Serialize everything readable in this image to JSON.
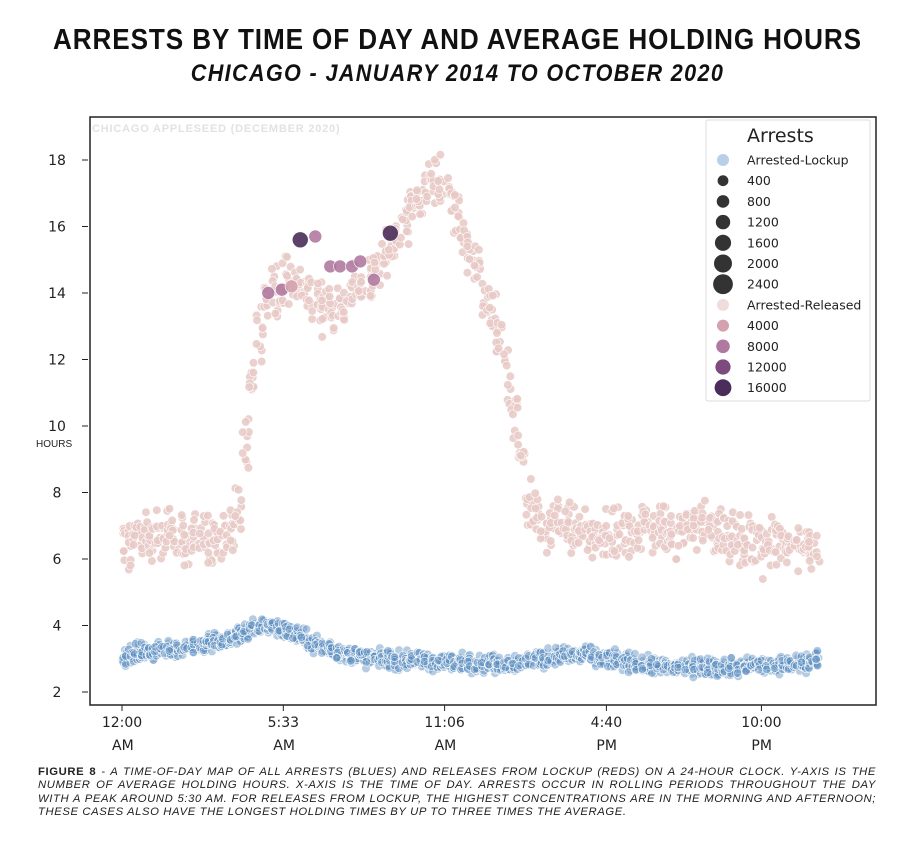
{
  "chart_data": {
    "type": "scatter",
    "title": "ARRESTS BY TIME OF DAY AND AVERAGE HOLDING HOURS",
    "subtitle": "CHICAGO - JANUARY 2014 TO OCTOBER 2020",
    "watermark": "CHICAGO APPLESEED (DECEMBER 2020)",
    "xlabel": "",
    "ylabel": "HOURS",
    "x_unit": "minutes after midnight",
    "xlim": [
      0,
      1440
    ],
    "ylim": [
      2,
      18
    ],
    "yticks": [
      2,
      4,
      6,
      8,
      10,
      12,
      14,
      16,
      18
    ],
    "xticks": [
      {
        "minute": 0,
        "line1": "12:00",
        "line2": "AM"
      },
      {
        "minute": 333,
        "line1": "5:33",
        "line2": "AM"
      },
      {
        "minute": 666,
        "line1": "11:06",
        "line2": "AM"
      },
      {
        "minute": 1000,
        "line1": "4:40",
        "line2": "PM"
      },
      {
        "minute": 1320,
        "line1": "10:00",
        "line2": "PM"
      }
    ],
    "grid": false,
    "legend": {
      "title": "Arrests",
      "placement": "top-right",
      "entries": [
        {
          "label": "Arrested-Lockup",
          "kind": "header",
          "color": "#b8d0e6",
          "size": 0
        },
        {
          "label": "400",
          "kind": "size",
          "color": "#333333",
          "size": 400
        },
        {
          "label": "800",
          "kind": "size",
          "color": "#333333",
          "size": 800
        },
        {
          "label": "1200",
          "kind": "size",
          "color": "#333333",
          "size": 1200
        },
        {
          "label": "1600",
          "kind": "size",
          "color": "#333333",
          "size": 1600
        },
        {
          "label": "2000",
          "kind": "size",
          "color": "#333333",
          "size": 2000
        },
        {
          "label": "2400",
          "kind": "size",
          "color": "#333333",
          "size": 2400
        },
        {
          "label": "Arrested-Released",
          "kind": "header",
          "color": "#efdcdc",
          "size": 0
        },
        {
          "label": "4000",
          "kind": "hue",
          "color": "#d4a1ae",
          "size": 4000
        },
        {
          "label": "8000",
          "kind": "hue",
          "color": "#b07aa0",
          "size": 8000
        },
        {
          "label": "12000",
          "kind": "hue",
          "color": "#7d4a7e",
          "size": 12000
        },
        {
          "label": "16000",
          "kind": "hue",
          "color": "#4a2d5a",
          "size": 16000
        }
      ]
    },
    "series": [
      {
        "name": "Arrested-Released",
        "color": "#e8c9c6",
        "step_minutes": 15,
        "spread_hours": 0.8,
        "mean_hours": [
          6.6,
          6.5,
          6.6,
          6.7,
          6.6,
          6.6,
          6.8,
          6.7,
          6.6,
          6.5,
          6.6,
          6.7,
          6.6,
          6.5,
          6.6,
          6.7,
          7.5,
          9.5,
          11.5,
          13.0,
          13.8,
          14.1,
          14.2,
          14.3,
          14.2,
          14.1,
          14.0,
          13.8,
          13.6,
          13.5,
          13.6,
          13.8,
          14.0,
          14.2,
          14.4,
          14.7,
          15.0,
          15.4,
          15.9,
          16.3,
          16.6,
          16.9,
          17.2,
          17.4,
          17.3,
          16.9,
          16.4,
          15.8,
          15.2,
          14.6,
          14.0,
          13.3,
          12.5,
          11.6,
          10.4,
          9.0,
          7.8,
          7.2,
          6.9,
          7.0,
          7.1,
          7.0,
          6.9,
          6.8,
          6.7,
          6.6,
          6.6,
          6.6,
          6.7,
          6.8,
          6.8,
          6.9,
          7.0,
          7.0,
          6.9,
          6.8,
          6.8,
          6.9,
          7.0,
          7.1,
          7.0,
          6.9,
          6.8,
          6.7,
          6.6,
          6.5,
          6.5,
          6.4,
          6.4,
          6.5,
          6.5,
          6.4,
          6.4,
          6.5,
          6.4,
          6.4,
          6.5
        ]
      },
      {
        "name": "Arrested-Lockup",
        "color": "#5a8fc2",
        "step_minutes": 15,
        "spread_hours": 0.28,
        "mean_hours": [
          3.1,
          3.1,
          3.2,
          3.2,
          3.2,
          3.3,
          3.3,
          3.3,
          3.3,
          3.4,
          3.4,
          3.4,
          3.5,
          3.5,
          3.5,
          3.6,
          3.7,
          3.8,
          3.9,
          4.0,
          4.0,
          4.0,
          3.9,
          3.8,
          3.7,
          3.6,
          3.5,
          3.4,
          3.3,
          3.3,
          3.2,
          3.1,
          3.1,
          3.1,
          3.0,
          3.0,
          3.0,
          3.0,
          2.95,
          2.95,
          2.95,
          2.9,
          2.9,
          2.9,
          2.9,
          2.9,
          2.9,
          2.9,
          2.9,
          2.85,
          2.85,
          2.85,
          2.85,
          2.85,
          2.9,
          2.9,
          2.95,
          3.0,
          3.0,
          3.05,
          3.1,
          3.1,
          3.1,
          3.1,
          3.1,
          3.05,
          3.0,
          3.0,
          2.95,
          2.9,
          2.9,
          2.85,
          2.8,
          2.8,
          2.75,
          2.75,
          2.75,
          2.75,
          2.75,
          2.75,
          2.75,
          2.75,
          2.75,
          2.75,
          2.75,
          2.75,
          2.8,
          2.8,
          2.8,
          2.8,
          2.8,
          2.85,
          2.85,
          2.85,
          2.9,
          2.9,
          2.95
        ]
      }
    ],
    "highlighted": [
      {
        "minute": 302,
        "hours": 14.0,
        "arrests": 8000
      },
      {
        "minute": 330,
        "hours": 14.1,
        "arrests": 8000
      },
      {
        "minute": 350,
        "hours": 14.2,
        "arrests": 4000
      },
      {
        "minute": 430,
        "hours": 14.8,
        "arrests": 8000
      },
      {
        "minute": 450,
        "hours": 14.8,
        "arrests": 8000
      },
      {
        "minute": 475,
        "hours": 14.8,
        "arrests": 8000
      },
      {
        "minute": 520,
        "hours": 14.4,
        "arrests": 8000
      },
      {
        "minute": 368,
        "hours": 15.6,
        "arrests": 16000
      },
      {
        "minute": 399,
        "hours": 15.7,
        "arrests": 8000
      },
      {
        "minute": 492,
        "hours": 14.95,
        "arrests": 8000
      },
      {
        "minute": 554,
        "hours": 15.8,
        "arrests": 16000
      }
    ]
  },
  "caption": {
    "label": "FIGURE 8",
    "text": " - A time-of-day map of all arrests (blues) and releases from lockup (reds) on a 24-hour clock. Y-axis is the number of average holding hours. X-axis is the time of day. Arrests occur in rolling periods throughout the day with a peak around 5:30 AM. For releases from lockup, the highest concentrations are in the morning and afternoon; these cases also have the longest holding times by up to three times the average."
  }
}
